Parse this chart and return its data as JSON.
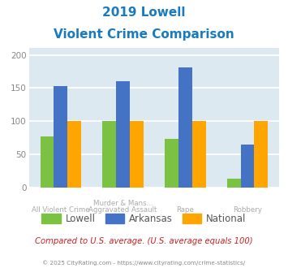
{
  "title_line1": "2019 Lowell",
  "title_line2": "Violent Crime Comparison",
  "cat_labels_top": [
    "",
    "Murder & Mans...",
    "",
    ""
  ],
  "cat_labels_bot": [
    "All Violent Crime",
    "Aggravated Assault",
    "Rape",
    "Robbery"
  ],
  "lowell": [
    77,
    100,
    73,
    13
  ],
  "arkansas": [
    153,
    160,
    181,
    65
  ],
  "national": [
    100,
    100,
    100,
    100
  ],
  "lowell_color": "#7bc242",
  "arkansas_color": "#4472c4",
  "national_color": "#ffa500",
  "ylim": [
    0,
    210
  ],
  "yticks": [
    0,
    50,
    100,
    150,
    200
  ],
  "bg_color": "#dce9f0",
  "grid_color": "#ffffff",
  "title_color": "#1a7abf",
  "footer_note": "Compared to U.S. average. (U.S. average equals 100)",
  "footer_copy": "© 2025 CityRating.com - https://www.cityrating.com/crime-statistics/",
  "legend_labels": [
    "Lowell",
    "Arkansas",
    "National"
  ]
}
